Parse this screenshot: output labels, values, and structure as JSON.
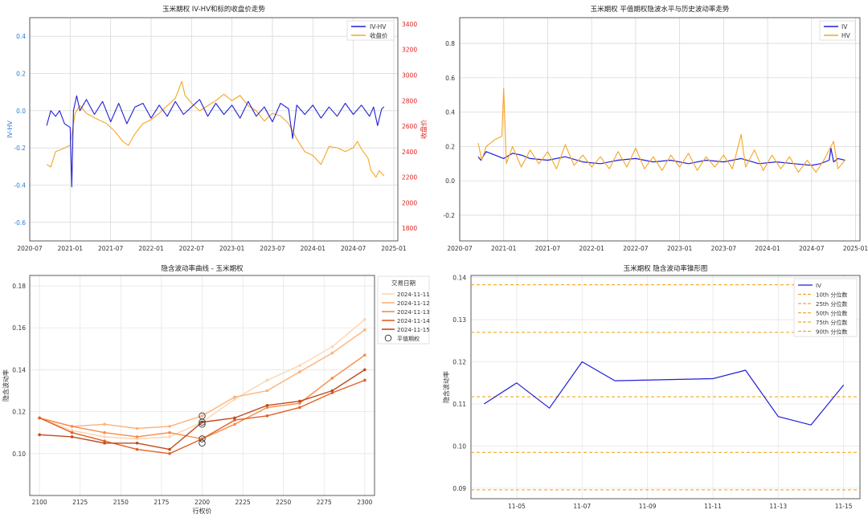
{
  "colors": {
    "blue": "#1f1fd9",
    "orange": "#f5a623",
    "red": "#e02020",
    "tickblue": "#2b7bd6",
    "grid": "#d9d9d9",
    "frame": "#333333"
  },
  "chart_data": [
    {
      "id": "c1",
      "type": "line",
      "title": "玉米期权 IV-HV和标的收盘价走势",
      "ylabel": "IV-HV",
      "y2label": "收盘价",
      "x_ticks": [
        "2020-07",
        "2021-01",
        "2021-07",
        "2022-01",
        "2022-07",
        "2023-01",
        "2023-07",
        "2024-01",
        "2024-07",
        "2025-01"
      ],
      "y_ticks": [
        "-0.6",
        "-0.4",
        "-0.2",
        "0.0",
        "0.2",
        "0.4"
      ],
      "y2_ticks": [
        "1800",
        "2000",
        "2200",
        "2400",
        "2600",
        "2800",
        "3000",
        "3200",
        "3400"
      ],
      "ylim": [
        -0.7,
        0.5
      ],
      "y2lim": [
        1700,
        3450
      ],
      "legend": [
        "IV-HV",
        "收盘价"
      ],
      "series": [
        {
          "name": "IV-HV",
          "axis": "left",
          "color": "blue",
          "points": [
            [
              2020.71,
              -0.08
            ],
            [
              2020.76,
              0.0
            ],
            [
              2020.82,
              -0.03
            ],
            [
              2020.87,
              0.0
            ],
            [
              2020.93,
              -0.07
            ],
            [
              2021.0,
              -0.09
            ],
            [
              2021.02,
              -0.41
            ],
            [
              2021.04,
              0.0
            ],
            [
              2021.08,
              0.08
            ],
            [
              2021.12,
              0.0
            ],
            [
              2021.2,
              0.06
            ],
            [
              2021.3,
              -0.02
            ],
            [
              2021.4,
              0.05
            ],
            [
              2021.5,
              -0.06
            ],
            [
              2021.6,
              0.04
            ],
            [
              2021.7,
              -0.07
            ],
            [
              2021.8,
              0.02
            ],
            [
              2021.9,
              0.04
            ],
            [
              2022.0,
              -0.04
            ],
            [
              2022.1,
              0.03
            ],
            [
              2022.2,
              -0.03
            ],
            [
              2022.3,
              0.05
            ],
            [
              2022.4,
              -0.02
            ],
            [
              2022.5,
              0.02
            ],
            [
              2022.6,
              0.06
            ],
            [
              2022.7,
              -0.03
            ],
            [
              2022.8,
              0.04
            ],
            [
              2022.9,
              -0.02
            ],
            [
              2023.0,
              0.03
            ],
            [
              2023.1,
              -0.04
            ],
            [
              2023.2,
              0.05
            ],
            [
              2023.3,
              -0.03
            ],
            [
              2023.4,
              0.02
            ],
            [
              2023.5,
              -0.06
            ],
            [
              2023.6,
              0.04
            ],
            [
              2023.7,
              0.01
            ],
            [
              2023.75,
              -0.15
            ],
            [
              2023.8,
              0.03
            ],
            [
              2023.9,
              -0.02
            ],
            [
              2024.0,
              0.03
            ],
            [
              2024.1,
              -0.04
            ],
            [
              2024.2,
              0.02
            ],
            [
              2024.3,
              -0.03
            ],
            [
              2024.4,
              0.04
            ],
            [
              2024.5,
              -0.02
            ],
            [
              2024.6,
              0.03
            ],
            [
              2024.7,
              -0.03
            ],
            [
              2024.75,
              0.02
            ],
            [
              2024.8,
              -0.08
            ],
            [
              2024.85,
              0.01
            ],
            [
              2024.88,
              0.02
            ]
          ]
        },
        {
          "name": "收盘价",
          "axis": "right",
          "color": "orange",
          "points": [
            [
              2020.71,
              2300
            ],
            [
              2020.76,
              2280
            ],
            [
              2020.82,
              2400
            ],
            [
              2020.9,
              2420
            ],
            [
              2021.0,
              2450
            ],
            [
              2021.06,
              2700
            ],
            [
              2021.12,
              2760
            ],
            [
              2021.2,
              2700
            ],
            [
              2021.35,
              2650
            ],
            [
              2021.45,
              2620
            ],
            [
              2021.55,
              2560
            ],
            [
              2021.65,
              2480
            ],
            [
              2021.72,
              2450
            ],
            [
              2021.8,
              2540
            ],
            [
              2021.9,
              2620
            ],
            [
              2022.0,
              2650
            ],
            [
              2022.1,
              2700
            ],
            [
              2022.2,
              2760
            ],
            [
              2022.3,
              2820
            ],
            [
              2022.38,
              2950
            ],
            [
              2022.42,
              2840
            ],
            [
              2022.5,
              2780
            ],
            [
              2022.6,
              2720
            ],
            [
              2022.7,
              2760
            ],
            [
              2022.8,
              2800
            ],
            [
              2022.9,
              2850
            ],
            [
              2023.0,
              2800
            ],
            [
              2023.1,
              2840
            ],
            [
              2023.2,
              2760
            ],
            [
              2023.3,
              2720
            ],
            [
              2023.4,
              2640
            ],
            [
              2023.5,
              2700
            ],
            [
              2023.6,
              2680
            ],
            [
              2023.7,
              2620
            ],
            [
              2023.8,
              2500
            ],
            [
              2023.9,
              2400
            ],
            [
              2024.0,
              2370
            ],
            [
              2024.1,
              2300
            ],
            [
              2024.2,
              2440
            ],
            [
              2024.3,
              2430
            ],
            [
              2024.4,
              2400
            ],
            [
              2024.5,
              2430
            ],
            [
              2024.55,
              2480
            ],
            [
              2024.6,
              2420
            ],
            [
              2024.68,
              2350
            ],
            [
              2024.72,
              2250
            ],
            [
              2024.78,
              2200
            ],
            [
              2024.82,
              2250
            ],
            [
              2024.88,
              2210
            ]
          ]
        }
      ]
    },
    {
      "id": "c2",
      "type": "line",
      "title": "玉米期权 平值期权隐波水平与历史波动率走势",
      "x_ticks": [
        "2020-07",
        "2021-01",
        "2021-07",
        "2022-01",
        "2022-07",
        "2023-01",
        "2023-07",
        "2024-01",
        "2024-07",
        "2025-01"
      ],
      "y_ticks": [
        "-0.2",
        "0.0",
        "0.2",
        "0.4",
        "0.6",
        "0.8"
      ],
      "ylim": [
        -0.35,
        0.95
      ],
      "legend": [
        "IV",
        "HV"
      ],
      "series": [
        {
          "name": "IV",
          "color": "blue",
          "points": [
            [
              2020.71,
              0.14
            ],
            [
              2020.74,
              0.12
            ],
            [
              2020.8,
              0.17
            ],
            [
              2020.9,
              0.15
            ],
            [
              2021.0,
              0.13
            ],
            [
              2021.1,
              0.16
            ],
            [
              2021.2,
              0.15
            ],
            [
              2021.3,
              0.13
            ],
            [
              2021.5,
              0.12
            ],
            [
              2021.7,
              0.14
            ],
            [
              2021.9,
              0.11
            ],
            [
              2022.1,
              0.1
            ],
            [
              2022.3,
              0.12
            ],
            [
              2022.5,
              0.13
            ],
            [
              2022.7,
              0.11
            ],
            [
              2022.9,
              0.12
            ],
            [
              2023.1,
              0.1
            ],
            [
              2023.3,
              0.12
            ],
            [
              2023.5,
              0.11
            ],
            [
              2023.7,
              0.13
            ],
            [
              2023.9,
              0.1
            ],
            [
              2024.1,
              0.11
            ],
            [
              2024.3,
              0.1
            ],
            [
              2024.5,
              0.09
            ],
            [
              2024.6,
              0.1
            ],
            [
              2024.7,
              0.12
            ],
            [
              2024.72,
              0.19
            ],
            [
              2024.75,
              0.11
            ],
            [
              2024.8,
              0.13
            ],
            [
              2024.88,
              0.12
            ]
          ]
        },
        {
          "name": "HV",
          "color": "orange",
          "points": [
            [
              2020.71,
              0.22
            ],
            [
              2020.75,
              0.12
            ],
            [
              2020.8,
              0.2
            ],
            [
              2020.9,
              0.24
            ],
            [
              2020.98,
              0.26
            ],
            [
              2021.0,
              0.54
            ],
            [
              2021.03,
              0.1
            ],
            [
              2021.1,
              0.2
            ],
            [
              2021.2,
              0.08
            ],
            [
              2021.3,
              0.18
            ],
            [
              2021.4,
              0.1
            ],
            [
              2021.5,
              0.17
            ],
            [
              2021.6,
              0.07
            ],
            [
              2021.7,
              0.21
            ],
            [
              2021.8,
              0.09
            ],
            [
              2021.9,
              0.15
            ],
            [
              2022.0,
              0.08
            ],
            [
              2022.1,
              0.14
            ],
            [
              2022.2,
              0.07
            ],
            [
              2022.3,
              0.17
            ],
            [
              2022.4,
              0.08
            ],
            [
              2022.5,
              0.19
            ],
            [
              2022.6,
              0.07
            ],
            [
              2022.7,
              0.14
            ],
            [
              2022.8,
              0.06
            ],
            [
              2022.9,
              0.15
            ],
            [
              2023.0,
              0.08
            ],
            [
              2023.1,
              0.16
            ],
            [
              2023.2,
              0.06
            ],
            [
              2023.3,
              0.14
            ],
            [
              2023.4,
              0.08
            ],
            [
              2023.5,
              0.15
            ],
            [
              2023.6,
              0.07
            ],
            [
              2023.7,
              0.27
            ],
            [
              2023.75,
              0.08
            ],
            [
              2023.85,
              0.18
            ],
            [
              2023.95,
              0.06
            ],
            [
              2024.05,
              0.15
            ],
            [
              2024.15,
              0.07
            ],
            [
              2024.25,
              0.14
            ],
            [
              2024.35,
              0.05
            ],
            [
              2024.45,
              0.12
            ],
            [
              2024.55,
              0.05
            ],
            [
              2024.65,
              0.13
            ],
            [
              2024.75,
              0.23
            ],
            [
              2024.8,
              0.07
            ],
            [
              2024.88,
              0.12
            ]
          ]
        }
      ]
    },
    {
      "id": "c3",
      "type": "line",
      "title": "隐含波动率曲线 - 玉米期权",
      "xlabel": "行权价",
      "ylabel": "隐含波动率",
      "x_ticks": [
        "2100",
        "2125",
        "2150",
        "2175",
        "2200",
        "2225",
        "2250",
        "2275",
        "2300"
      ],
      "y_ticks": [
        "0.10",
        "0.12",
        "0.14",
        "0.16",
        "0.18"
      ],
      "xlim": [
        2094,
        2306
      ],
      "ylim": [
        0.08,
        0.185
      ],
      "legend_title": "交易日期",
      "legend": [
        "2024-11-11",
        "2024-11-12",
        "2024-11-13",
        "2024-11-14",
        "2024-11-15",
        "平值期权"
      ],
      "strikes": [
        2100,
        2120,
        2140,
        2160,
        2180,
        2200,
        2220,
        2240,
        2260,
        2280,
        2300
      ],
      "series": [
        {
          "name": "2024-11-11",
          "color": "#fdd5b1",
          "values": [
            0.117,
            0.111,
            0.108,
            0.107,
            0.108,
            0.115,
            0.126,
            0.135,
            0.142,
            0.151,
            0.164
          ]
        },
        {
          "name": "2024-11-12",
          "color": "#fdb27a",
          "values": [
            0.117,
            0.113,
            0.114,
            0.112,
            0.113,
            0.118,
            0.127,
            0.13,
            0.139,
            0.148,
            0.159
          ]
        },
        {
          "name": "2024-11-13",
          "color": "#f78c4a",
          "values": [
            0.117,
            0.113,
            0.11,
            0.108,
            0.11,
            0.107,
            0.114,
            0.122,
            0.124,
            0.136,
            0.147
          ]
        },
        {
          "name": "2024-11-14",
          "color": "#e0612a",
          "values": [
            0.117,
            0.11,
            0.106,
            0.102,
            0.1,
            0.107,
            0.116,
            0.118,
            0.122,
            0.129,
            0.135
          ]
        },
        {
          "name": "2024-11-15",
          "color": "#c04b1c",
          "values": [
            0.109,
            0.108,
            0.105,
            0.105,
            0.102,
            0.115,
            0.117,
            0.123,
            0.125,
            0.13,
            0.14
          ]
        }
      ],
      "atm_points": [
        [
          2200,
          0.118
        ],
        [
          2200,
          0.115
        ],
        [
          2200,
          0.107
        ],
        [
          2200,
          0.105
        ],
        [
          2200,
          0.114
        ]
      ]
    },
    {
      "id": "c4",
      "type": "line",
      "title": "玉米期权 隐含波动率锥形图",
      "ylabel": "隐含波动率",
      "x_ticks": [
        "11-05",
        "11-07",
        "11-09",
        "11-11",
        "11-13",
        "11-15"
      ],
      "x_tick_values": [
        5,
        7,
        9,
        11,
        13,
        15
      ],
      "y_ticks": [
        "0.09",
        "0.10",
        "0.11",
        "0.12",
        "0.13",
        "0.14"
      ],
      "xlim": [
        3.6,
        15.5
      ],
      "ylim": [
        0.0875,
        0.1405
      ],
      "legend": [
        "IV",
        "10th 分位数",
        "25th 分位数",
        "50th 分位数",
        "75th 分位数",
        "90th 分位数"
      ],
      "iv": [
        [
          4,
          0.11
        ],
        [
          5,
          0.115
        ],
        [
          6,
          0.109
        ],
        [
          7,
          0.12
        ],
        [
          8,
          0.1155
        ],
        [
          11,
          0.116
        ],
        [
          12,
          0.118
        ],
        [
          13,
          0.107
        ],
        [
          14,
          0.105
        ],
        [
          15,
          0.1145
        ]
      ],
      "percentiles": [
        0.0896,
        0.0985,
        0.1117,
        0.127,
        0.1383
      ]
    }
  ]
}
